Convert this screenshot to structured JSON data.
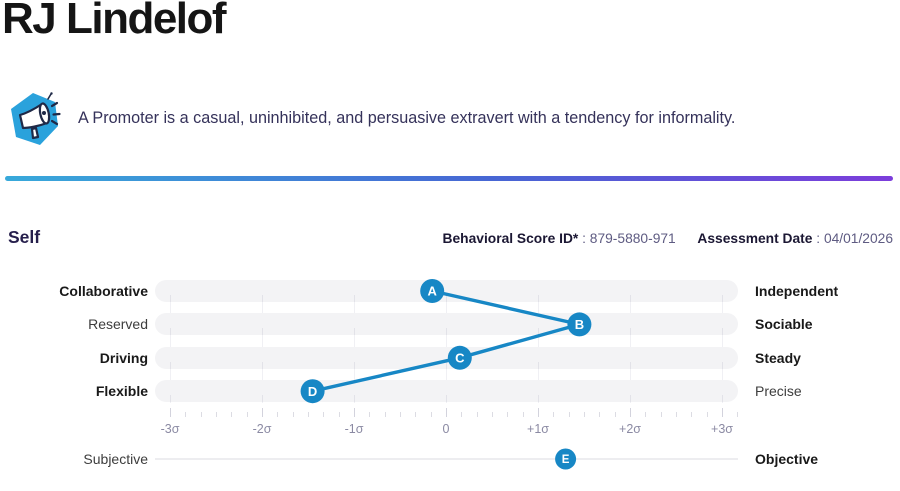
{
  "page": {
    "title": "RJ Lindelof"
  },
  "persona": {
    "icon": "megaphone-icon",
    "description": "A Promoter is a casual, uninhibited, and persuasive extravert with a tendency for informality."
  },
  "section": {
    "title": "Self",
    "score_id_label": "Behavioral Score ID*",
    "score_id_value": ": 879-5880-971",
    "date_label": "Assessment Date",
    "date_value": ": 04/01/2026"
  },
  "chart_data": {
    "type": "scatter",
    "subtype": "bipolar-behavioral-scale",
    "title": "Self",
    "x_axis": {
      "ticks": [
        "-3σ",
        "-2σ",
        "-1σ",
        "0",
        "+1σ",
        "+2σ",
        "+3σ"
      ],
      "range": [
        -3,
        3
      ],
      "grid": true
    },
    "rows": [
      {
        "marker": "A",
        "value_sigma": -0.15,
        "left": "Collaborative",
        "left_bold": true,
        "right": "Independent",
        "right_bold": true
      },
      {
        "marker": "B",
        "value_sigma": 1.45,
        "left": "Reserved",
        "left_bold": false,
        "right": "Sociable",
        "right_bold": true
      },
      {
        "marker": "C",
        "value_sigma": 0.15,
        "left": "Driving",
        "left_bold": true,
        "right": "Steady",
        "right_bold": true
      },
      {
        "marker": "D",
        "value_sigma": -1.45,
        "left": "Flexible",
        "left_bold": true,
        "right": "Precise",
        "right_bold": false
      }
    ],
    "secondary_row": {
      "marker": "E",
      "value_sigma": 1.3,
      "left": "Subjective",
      "left_bold": false,
      "right": "Objective",
      "right_bold": true
    },
    "colors": {
      "marker": "#1787c5",
      "bar_track": "#f3f3f5",
      "axis_text": "#8b8aa3",
      "connector": "#1787c5"
    },
    "legend_position": "none"
  },
  "divider": {
    "gradient_start": "#38a9da",
    "gradient_end": "#7c3ddb"
  }
}
